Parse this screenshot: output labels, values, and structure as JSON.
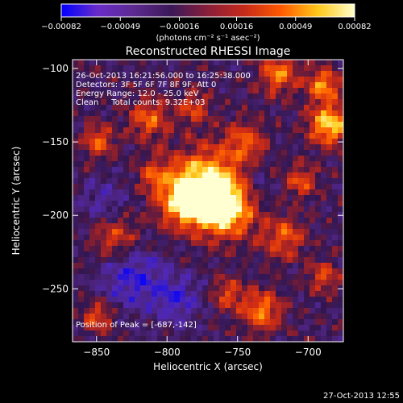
{
  "chart_data": {
    "type": "heatmap",
    "title": "Reconstructed RHESSI Image",
    "xlabel": "Heliocentric X (arcsec)",
    "ylabel": "Heliocentric Y (arcsec)",
    "xlim": [
      -867,
      -675
    ],
    "ylim": [
      -286,
      -94
    ],
    "x_ticks": [
      -850,
      -800,
      -750,
      -700
    ],
    "y_ticks": [
      -100,
      -150,
      -200,
      -250
    ],
    "x_tick_labels": [
      "−850",
      "−800",
      "−750",
      "−700"
    ],
    "y_tick_labels": [
      "−100",
      "−150",
      "−200",
      "−250"
    ],
    "colorbar": {
      "range": [
        -0.00082,
        0.00082
      ],
      "ticks": [
        -0.00082,
        -0.00049,
        -0.00016,
        0.00016,
        0.00049,
        0.00082
      ],
      "tick_labels": [
        "−0.00082",
        "−0.00049",
        "−0.00016",
        "0.00016",
        "0.00049",
        "0.00082"
      ],
      "units_label": "(photons cm⁻² s⁻¹ asec⁻²)",
      "colors": [
        "#0000ff",
        "#6a2cc9",
        "#5c2a8f",
        "#3b1858",
        "#8a1f3a",
        "#c62a19",
        "#ff5a00",
        "#ffc81a",
        "#ffffcc"
      ]
    },
    "annotations": [
      "26-Oct-2013 16:21:56.000 to 16:25:38.000",
      "Detectors: 3F 5F 6F 7F 8F 9F, Att 0",
      "Energy Range: 12.0 - 25.0 keV",
      "Clean     Total counts: 9.32E+03"
    ],
    "peak_label": "Position of Peak = [-687,-142]",
    "peak": [
      -687,
      -142
    ]
  },
  "footer": {
    "timestamp": "27-Oct-2013 12:55"
  }
}
